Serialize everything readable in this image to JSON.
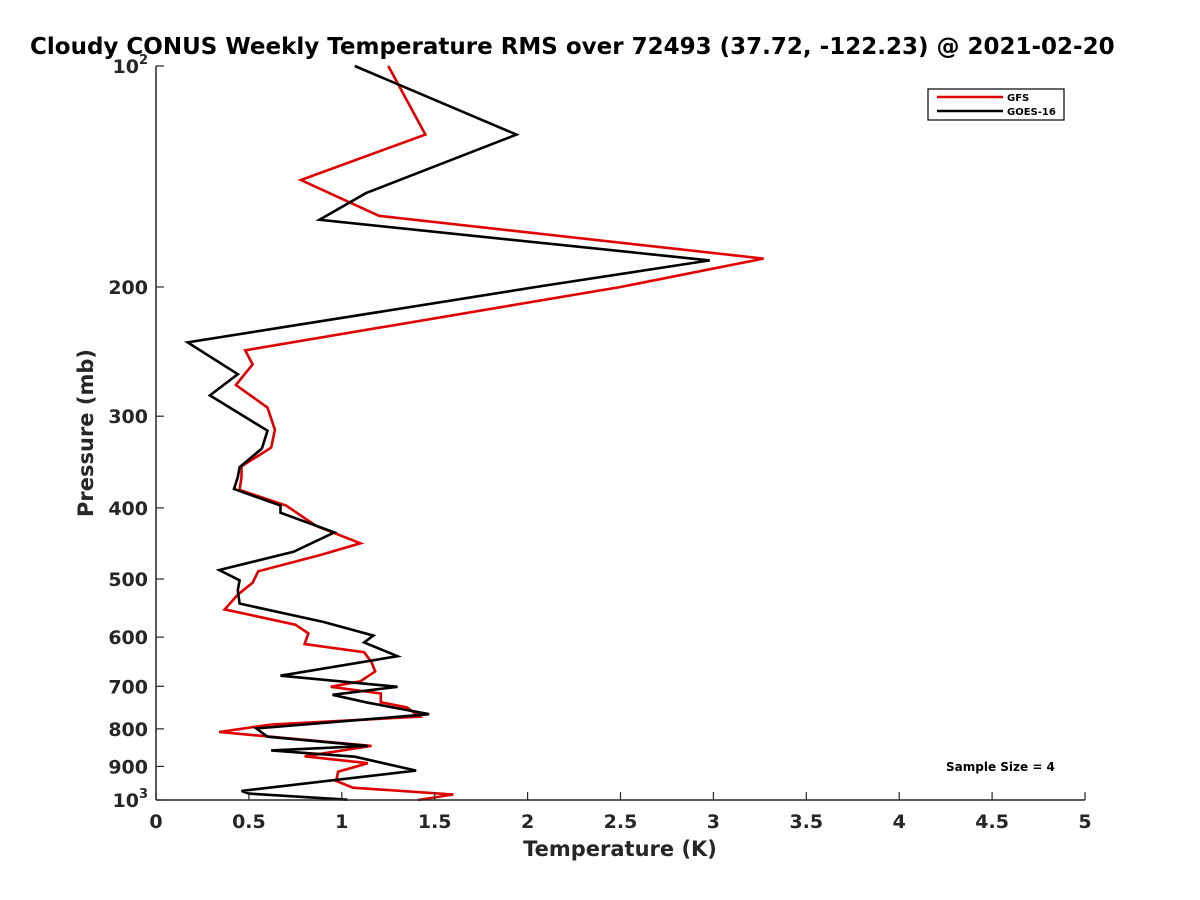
{
  "chart_data": {
    "type": "line",
    "title": "Cloudy CONUS Weekly Temperature RMS over 72493 (37.72, -122.23) @ 2021-02-20",
    "xlabel": "Temperature (K)",
    "ylabel": "Pressure (mb)",
    "xlim": [
      0,
      5
    ],
    "ylim": [
      1000,
      100
    ],
    "y_scale": "log",
    "y_reversed": true,
    "x_ticks": [
      "0",
      "0.5",
      "1",
      "1.5",
      "2",
      "2.5",
      "3",
      "3.5",
      "4",
      "4.5",
      "5"
    ],
    "y_ticks": [
      {
        "value": 100,
        "base": "10",
        "exp": "2"
      },
      {
        "value": 200,
        "base": "200",
        "exp": ""
      },
      {
        "value": 300,
        "base": "300",
        "exp": ""
      },
      {
        "value": 400,
        "base": "400",
        "exp": ""
      },
      {
        "value": 500,
        "base": "500",
        "exp": ""
      },
      {
        "value": 600,
        "base": "600",
        "exp": ""
      },
      {
        "value": 700,
        "base": "700",
        "exp": ""
      },
      {
        "value": 800,
        "base": "800",
        "exp": ""
      },
      {
        "value": 900,
        "base": "900",
        "exp": ""
      },
      {
        "value": 1000,
        "base": "10",
        "exp": "3"
      }
    ],
    "grid": false,
    "legend_position": "top-right",
    "annotation": "Sample Size = 4",
    "series": [
      {
        "name": "GFS",
        "color": "#e00000",
        "points": [
          [
            1.25,
            100
          ],
          [
            1.45,
            124
          ],
          [
            0.78,
            143
          ],
          [
            1.2,
            160
          ],
          [
            3.27,
            183
          ],
          [
            2.5,
            200
          ],
          [
            0.48,
            244
          ],
          [
            0.52,
            255
          ],
          [
            0.43,
            272
          ],
          [
            0.6,
            292
          ],
          [
            0.64,
            313
          ],
          [
            0.62,
            331
          ],
          [
            0.46,
            351
          ],
          [
            0.46,
            363
          ],
          [
            0.45,
            378
          ],
          [
            0.7,
            397
          ],
          [
            0.86,
            423
          ],
          [
            1.1,
            447
          ],
          [
            0.88,
            464
          ],
          [
            0.55,
            488
          ],
          [
            0.52,
            506
          ],
          [
            0.44,
            525
          ],
          [
            0.37,
            550
          ],
          [
            0.75,
            577
          ],
          [
            0.82,
            593
          ],
          [
            0.8,
            613
          ],
          [
            1.12,
            629
          ],
          [
            1.16,
            649
          ],
          [
            1.18,
            668
          ],
          [
            1.1,
            689
          ],
          [
            0.94,
            701
          ],
          [
            1.21,
            716
          ],
          [
            1.21,
            736
          ],
          [
            1.35,
            748
          ],
          [
            1.42,
            770
          ],
          [
            0.62,
            789
          ],
          [
            0.34,
            808
          ],
          [
            1.16,
            844
          ],
          [
            0.8,
            872
          ],
          [
            1.14,
            891
          ],
          [
            0.98,
            915
          ],
          [
            0.97,
            942
          ],
          [
            1.06,
            962
          ],
          [
            1.6,
            983
          ],
          [
            1.41,
            1000
          ]
        ]
      },
      {
        "name": "GOES-16",
        "color": "#000000",
        "points": [
          [
            1.07,
            100
          ],
          [
            1.94,
            124
          ],
          [
            1.13,
            149
          ],
          [
            0.88,
            162
          ],
          [
            2.98,
            184
          ],
          [
            2.1,
            199
          ],
          [
            0.17,
            238
          ],
          [
            0.44,
            263
          ],
          [
            0.29,
            281
          ],
          [
            0.6,
            314
          ],
          [
            0.57,
            332
          ],
          [
            0.45,
            352
          ],
          [
            0.44,
            363
          ],
          [
            0.42,
            377
          ],
          [
            0.67,
            397
          ],
          [
            0.67,
            406
          ],
          [
            0.96,
            432
          ],
          [
            0.74,
            459
          ],
          [
            0.34,
            486
          ],
          [
            0.45,
            502
          ],
          [
            0.44,
            518
          ],
          [
            0.45,
            540
          ],
          [
            0.9,
            572
          ],
          [
            1.17,
            597
          ],
          [
            1.12,
            610
          ],
          [
            1.3,
            637
          ],
          [
            0.67,
            677
          ],
          [
            1.3,
            701
          ],
          [
            0.95,
            719
          ],
          [
            1.14,
            737
          ],
          [
            1.47,
            764
          ],
          [
            0.54,
            799
          ],
          [
            0.6,
            820
          ],
          [
            1.14,
            844
          ],
          [
            0.62,
            856
          ],
          [
            1.07,
            873
          ],
          [
            1.4,
            912
          ],
          [
            0.46,
            972
          ],
          [
            0.5,
            980
          ],
          [
            1.03,
            999
          ]
        ]
      }
    ]
  }
}
